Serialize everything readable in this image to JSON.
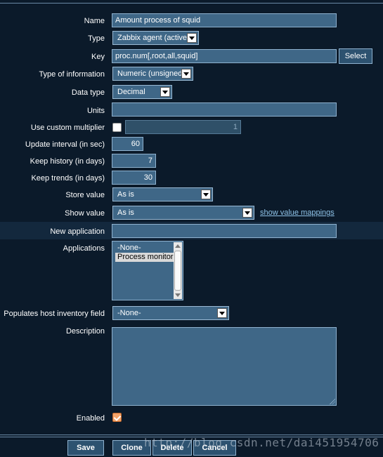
{
  "form": {
    "name": {
      "label": "Name",
      "value": "Amount process of squid"
    },
    "type": {
      "label": "Type",
      "value": "Zabbix agent (active)"
    },
    "key": {
      "label": "Key",
      "value": "proc.num[,root,all,squid]",
      "button": "Select"
    },
    "type_of_information": {
      "label": "Type of information",
      "value": "Numeric (unsigned)"
    },
    "data_type": {
      "label": "Data type",
      "value": "Decimal"
    },
    "units": {
      "label": "Units",
      "value": ""
    },
    "custom_multiplier": {
      "label": "Use custom multiplier",
      "checked": false,
      "value": "1"
    },
    "update_interval": {
      "label": "Update interval (in sec)",
      "value": "60"
    },
    "keep_history": {
      "label": "Keep history (in days)",
      "value": "7"
    },
    "keep_trends": {
      "label": "Keep trends (in days)",
      "value": "30"
    },
    "store_value": {
      "label": "Store value",
      "value": "As is"
    },
    "show_value": {
      "label": "Show value",
      "value": "As is",
      "link": "show value mappings"
    },
    "new_application": {
      "label": "New application",
      "value": ""
    },
    "applications": {
      "label": "Applications",
      "options": [
        "-None-",
        "Process monitor"
      ],
      "selected": "Process monitor"
    },
    "inventory_field": {
      "label": "Populates host inventory field",
      "value": "-None-"
    },
    "description": {
      "label": "Description",
      "value": ""
    },
    "enabled": {
      "label": "Enabled",
      "checked": true
    }
  },
  "buttons": {
    "save": "Save",
    "clone": "Clone",
    "delete": "Delete",
    "cancel": "Cancel"
  },
  "watermark": "http://blog.csdn.net/dai451954706",
  "colors": {
    "background": "#0b1a2a",
    "field": "#3f6787",
    "border": "#8fb2cf",
    "link": "#8fc3e8",
    "checkbox_on": "#f4a46a"
  }
}
